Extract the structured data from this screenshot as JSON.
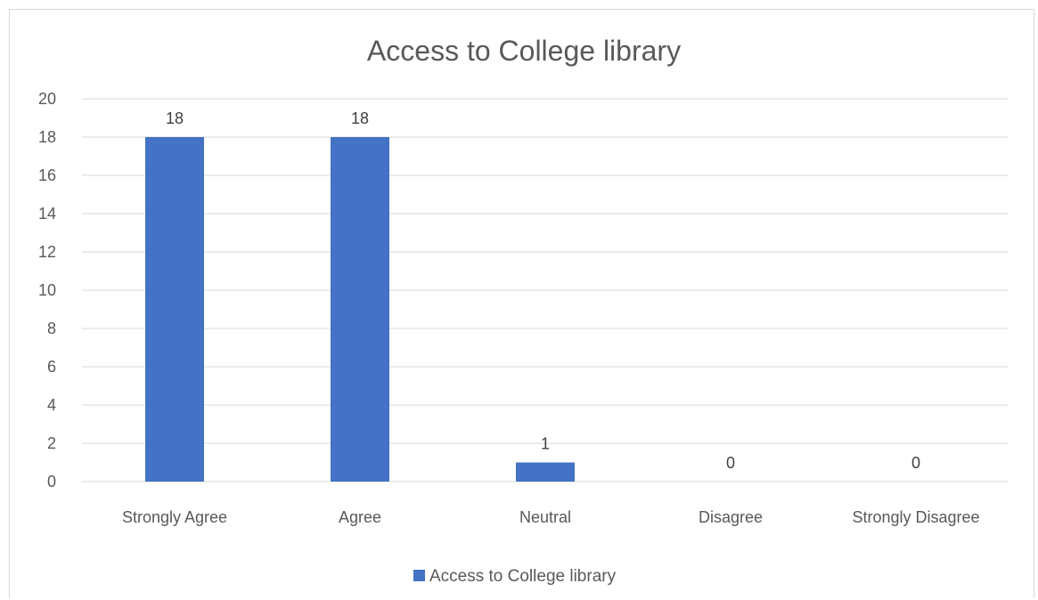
{
  "chart_data": {
    "type": "bar",
    "title": "Access to College library",
    "xlabel": "",
    "ylabel": "",
    "categories": [
      "Strongly Agree",
      "Agree",
      "Neutral",
      "Disagree",
      "Strongly Disagree"
    ],
    "series": [
      {
        "name": "Access to College library",
        "values": [
          18,
          18,
          1,
          0,
          0
        ],
        "color": "#4472c4"
      }
    ],
    "ylim": [
      0,
      20
    ],
    "yticks": [
      "0",
      "2",
      "4",
      "6",
      "8",
      "10",
      "12",
      "14",
      "16",
      "18",
      "20"
    ],
    "data_labels": [
      "18",
      "18",
      "1",
      "0",
      "0"
    ],
    "grid": true,
    "legend_position": "bottom"
  }
}
